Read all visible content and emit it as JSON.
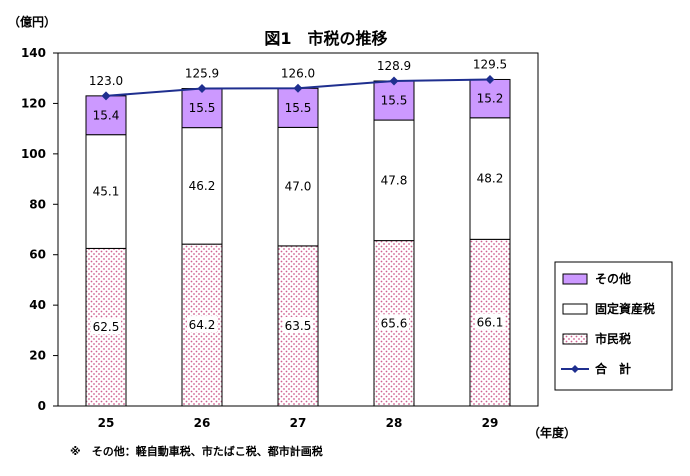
{
  "chart_data": {
    "type": "bar",
    "stacked": true,
    "title": "図1　市税の推移",
    "y_unit": "（億円）",
    "x_unit": "（年度）",
    "categories": [
      "25",
      "26",
      "27",
      "28",
      "29"
    ],
    "ylim": [
      0,
      140
    ],
    "yticks": [
      0,
      20,
      40,
      60,
      80,
      100,
      120,
      140
    ],
    "series": [
      {
        "name": "市民税",
        "values": [
          62.5,
          64.2,
          63.5,
          65.6,
          66.1
        ],
        "color": "#e8b8cc",
        "pattern": "dots"
      },
      {
        "name": "固定資産税",
        "values": [
          45.1,
          46.2,
          47.0,
          47.8,
          48.2
        ],
        "color": "#ffffff"
      },
      {
        "name": "その他",
        "values": [
          15.4,
          15.5,
          15.5,
          15.5,
          15.2
        ],
        "color": "#cc99ff"
      }
    ],
    "total": {
      "name": "合　計",
      "values": [
        123.0,
        125.9,
        126.0,
        128.9,
        129.5
      ],
      "color": "#1f2f8f",
      "marker": "diamond"
    },
    "legend_order": [
      "その他",
      "固定資産税",
      "市民税",
      "合　計"
    ],
    "legend_position": "right",
    "note": "※　その他：軽自動車税、市たばこ税、都市計画税"
  }
}
